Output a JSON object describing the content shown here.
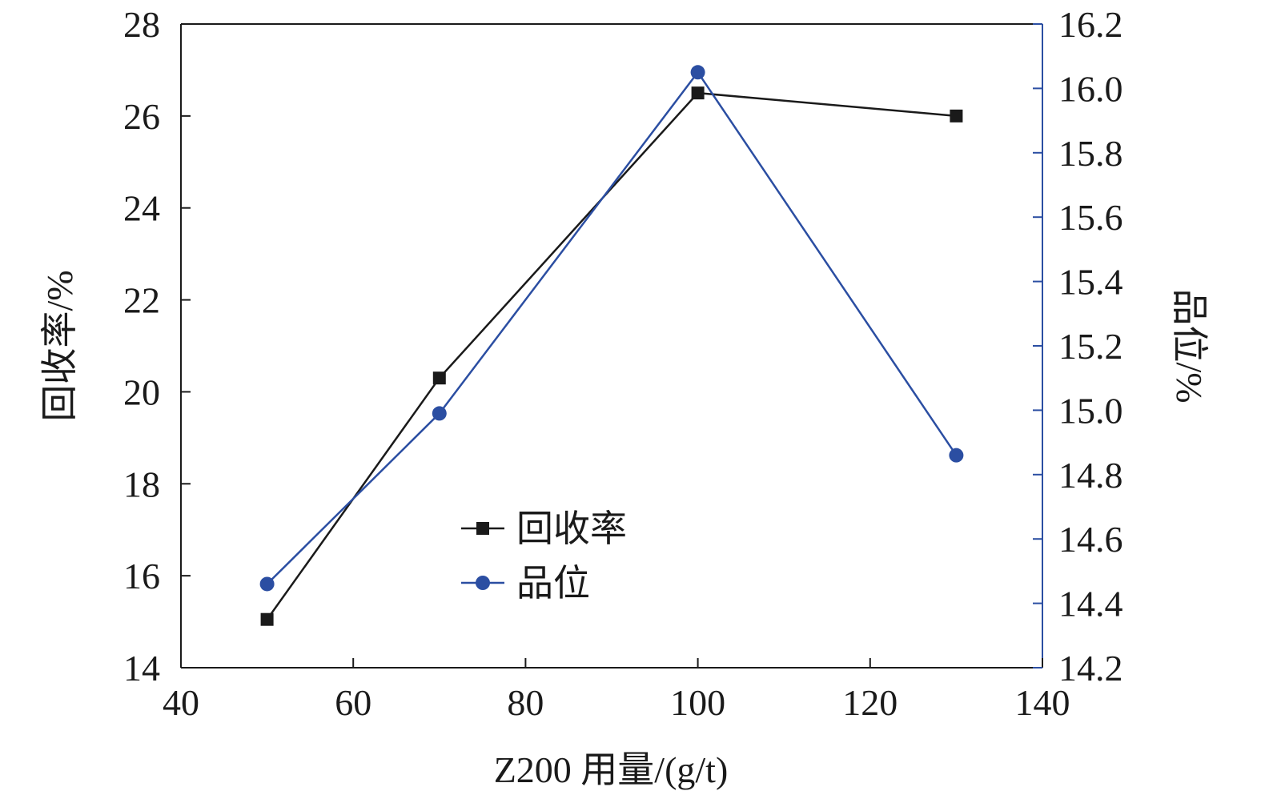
{
  "chart_data": {
    "type": "line",
    "x": [
      50,
      70,
      100,
      130
    ],
    "xlabel": "Z200 用量/(g/t)",
    "xlim": [
      40,
      140
    ],
    "xticks": [
      "40",
      "60",
      "80",
      "100",
      "120",
      "140"
    ],
    "ylabel_left": "回收率/%",
    "ylim_left": [
      14,
      28
    ],
    "yticks_left": [
      "14",
      "16",
      "18",
      "20",
      "22",
      "24",
      "26",
      "28"
    ],
    "ylabel_right": "品位/%",
    "ylim_right": [
      14.2,
      16.2
    ],
    "yticks_right": [
      "14.2",
      "14.4",
      "14.6",
      "14.8",
      "15.0",
      "15.2",
      "15.4",
      "15.6",
      "15.8",
      "16.0",
      "16.2"
    ],
    "series": [
      {
        "name": "回收率",
        "axis": "left",
        "marker": "square",
        "color": "#1a1a1a",
        "values": [
          15.05,
          20.3,
          26.5,
          26.0
        ]
      },
      {
        "name": "品位",
        "axis": "right",
        "marker": "circle",
        "color": "#2b4ea2",
        "values": [
          14.46,
          14.99,
          16.05,
          14.86
        ]
      }
    ],
    "legend_position": "center-bottom",
    "grid": false,
    "colors": {
      "axis": "#1a1a1a",
      "right_axis": "#2b4ea2"
    }
  }
}
